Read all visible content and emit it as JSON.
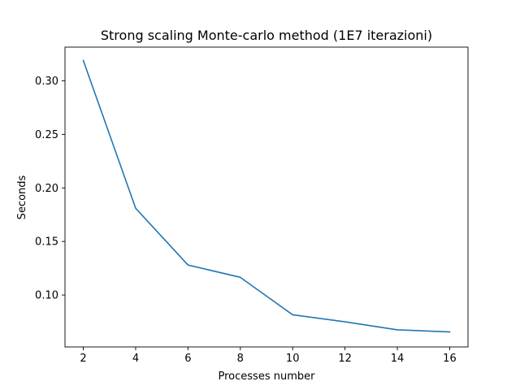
{
  "chart_data": {
    "type": "line",
    "title": "Strong scaling Monte-carlo method (1E7 iterazioni)",
    "xlabel": "Processes number",
    "ylabel": "Seconds",
    "xlim": [
      1.3,
      16.7
    ],
    "ylim": [
      0.0515,
      0.3315
    ],
    "x_ticks": [
      2,
      4,
      6,
      8,
      10,
      12,
      14,
      16
    ],
    "y_ticks": [
      0.1,
      0.15,
      0.2,
      0.25,
      0.3
    ],
    "x_tick_labels": [
      "2",
      "4",
      "6",
      "8",
      "10",
      "12",
      "14",
      "16"
    ],
    "y_tick_labels": [
      "0.10",
      "0.15",
      "0.20",
      "0.25",
      "0.30"
    ],
    "grid": false,
    "series": [
      {
        "color": "#1f77b4",
        "x": [
          2,
          4,
          6,
          8,
          10,
          12,
          14,
          16
        ],
        "values": [
          0.319,
          0.181,
          0.128,
          0.1165,
          0.0815,
          0.075,
          0.0675,
          0.0655
        ]
      }
    ]
  }
}
